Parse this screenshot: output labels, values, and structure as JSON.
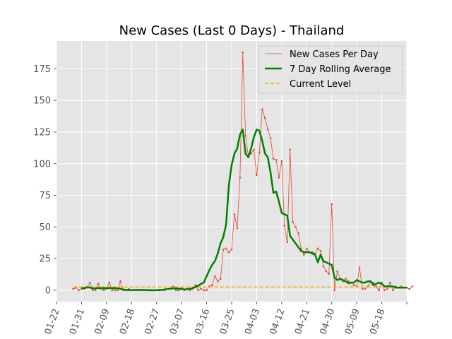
{
  "chart_data": {
    "type": "line",
    "title": "New Cases (Last 0 Days) - Thailand",
    "xlabel": "",
    "ylabel": "",
    "grid": true,
    "legend_position": "top-right",
    "xlim": [
      "2020-01-22",
      "2020-05-27"
    ],
    "ylim": [
      -9,
      197
    ],
    "x_tick_labels": [
      "01-22",
      "01-31",
      "02-09",
      "02-18",
      "02-27",
      "03-07",
      "03-16",
      "03-25",
      "04-03",
      "04-12",
      "04-21",
      "04-30",
      "05-09",
      "05-18",
      ""
    ],
    "y_ticks": [
      0,
      25,
      50,
      75,
      100,
      125,
      150,
      175
    ],
    "colors": {
      "background": "#e5e5e5",
      "grid": "#ffffff",
      "daily": "#e24a33",
      "rolling": "#008000",
      "current": "#ffa500"
    },
    "series": [
      {
        "name": "New Cases Per Day",
        "style": "thin-line-with-dots",
        "start_date": "2020-01-28",
        "values": [
          1,
          2,
          0,
          1,
          1,
          2,
          6,
          0,
          0,
          5,
          1,
          0,
          1,
          6,
          0,
          0,
          0,
          7,
          0,
          0,
          1,
          0,
          0,
          0,
          0,
          0,
          0,
          0,
          0,
          0,
          0,
          0,
          0,
          0,
          1,
          1,
          3,
          0,
          0,
          2,
          0,
          1,
          0,
          1,
          4,
          0,
          1,
          0,
          0,
          3,
          4,
          11,
          7,
          9,
          32,
          33,
          30,
          32,
          60,
          49,
          89,
          188,
          122,
          106,
          108,
          111,
          91,
          109,
          143,
          136,
          127,
          120,
          104,
          103,
          89,
          102,
          51,
          38,
          111,
          54,
          50,
          45,
          33,
          28,
          33,
          30,
          30,
          29,
          33,
          31,
          19,
          15,
          13,
          68,
          0,
          15,
          9,
          7,
          9,
          7,
          6,
          4,
          3,
          18,
          1,
          1,
          3,
          7,
          6,
          3,
          0,
          6,
          0,
          1,
          6,
          0,
          3,
          2,
          3,
          2,
          2,
          1,
          3
        ]
      },
      {
        "name": "7 Day Rolling Average",
        "style": "thick-line",
        "start_date": "2020-01-31",
        "values": [
          1.7,
          1.7,
          2.3,
          2.1,
          1.4,
          1.4,
          1.7,
          1.6,
          1.6,
          1.6,
          1.6,
          1.6,
          1.7,
          1.5,
          1.0,
          0.6,
          0.2,
          0.1,
          0.2,
          0.2,
          0.3,
          0.3,
          0.2,
          0.2,
          0.1,
          0.0,
          0.0,
          0.0,
          0.2,
          0.3,
          0.6,
          0.9,
          1.1,
          1.3,
          1.4,
          1.1,
          0.9,
          0.6,
          0.7,
          1.1,
          1.6,
          2.6,
          3.6,
          5.0,
          6.0,
          11.0,
          16.0,
          20.0,
          23.0,
          29.0,
          37.0,
          42.0,
          52.0,
          83.0,
          99.0,
          108.0,
          112.0,
          123.0,
          127.0,
          108.0,
          105.0,
          112.0,
          121.0,
          127.0,
          126.0,
          118.0,
          108.0,
          105.0,
          93.0,
          77.0,
          78.0,
          70.0,
          61.0,
          60.0,
          59.0,
          43.0,
          40.0,
          37.0,
          34.0,
          31.0,
          30.0,
          30.0,
          30.0,
          29.0,
          28.0,
          22.0,
          28.0,
          23.0,
          22.0,
          21.0,
          20.0,
          10.0,
          8.0,
          9.0,
          8.0,
          7.0,
          5.5,
          6.0,
          6.0,
          8.0,
          7.0,
          6.0,
          6.0,
          7.0,
          7.0,
          4.0,
          5.0,
          6.0,
          5.0,
          3.0,
          3.0,
          3.0,
          3.0,
          2.0,
          2.0,
          2.0,
          2.0,
          2.0
        ]
      },
      {
        "name": "Current Level",
        "style": "dashed-horizontal",
        "start_date": "2020-01-28",
        "end_date": "2020-05-21",
        "value": 2.5
      }
    ]
  }
}
